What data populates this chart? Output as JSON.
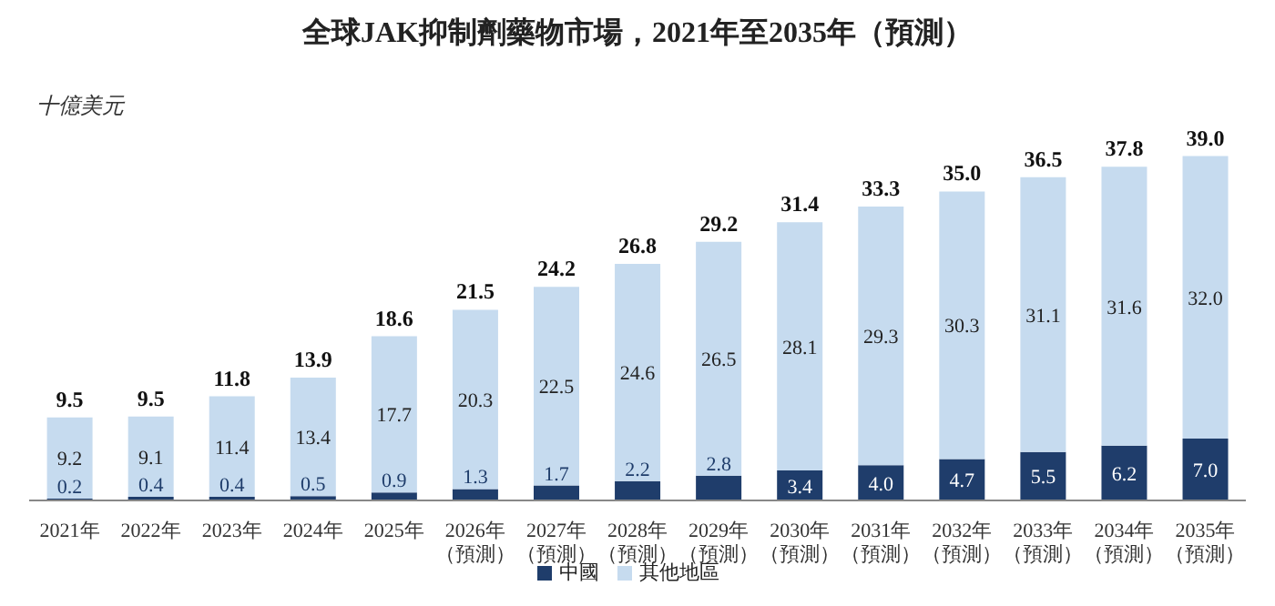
{
  "chart_data": {
    "type": "bar",
    "title": "全球JAK抑制劑藥物市場，2021年至2035年（預測）",
    "ylabel": "十億美元",
    "categories": [
      "2021年",
      "2022年",
      "2023年",
      "2024年",
      "2025年",
      "2026年（預測）",
      "2027年（預測）",
      "2028年（預測）",
      "2029年（預測）",
      "2030年（預測）",
      "2031年（預測）",
      "2032年（預測）",
      "2033年（預測）",
      "2034年（預測）",
      "2035年（預測）"
    ],
    "stacked": true,
    "legend": "bottom",
    "grid": false,
    "series": [
      {
        "name": "中國",
        "color": "#1f3d6b",
        "values": [
          0.2,
          0.4,
          0.4,
          0.5,
          0.9,
          1.3,
          1.7,
          2.2,
          2.8,
          3.4,
          4.0,
          4.7,
          5.5,
          6.2,
          7.0
        ],
        "value_labels": [
          "0.2",
          "0.4",
          "0.4",
          "0.5",
          "0.9",
          "1.3",
          "1.7",
          "2.2",
          "2.8",
          "3.4",
          "4.0",
          "4.7",
          "5.5",
          "6.2",
          "7.0"
        ]
      },
      {
        "name": "其他地區",
        "color": "#c6dbef",
        "values": [
          9.2,
          9.1,
          11.4,
          13.4,
          17.7,
          20.3,
          22.5,
          24.6,
          26.5,
          28.1,
          29.3,
          30.3,
          31.1,
          31.6,
          32.0
        ],
        "value_labels": [
          "9.2",
          "9.1",
          "11.4",
          "13.4",
          "17.7",
          "20.3",
          "22.5",
          "24.6",
          "26.5",
          "28.1",
          "29.3",
          "30.3",
          "31.1",
          "31.6",
          "32.0"
        ]
      }
    ],
    "totals": [
      "9.5",
      "9.5",
      "11.8",
      "13.9",
      "18.6",
      "21.5",
      "24.2",
      "26.8",
      "29.2",
      "31.4",
      "33.3",
      "35.0",
      "36.5",
      "37.8",
      "39.0"
    ]
  }
}
